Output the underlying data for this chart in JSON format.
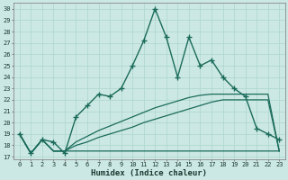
{
  "title": "",
  "xlabel": "Humidex (Indice chaleur)",
  "ylabel": "",
  "bg_color": "#cce8e4",
  "grid_color": "#b0d8d0",
  "line_color": "#1a6b5a",
  "x_ticks": [
    0,
    1,
    2,
    3,
    4,
    5,
    6,
    7,
    8,
    9,
    10,
    11,
    12,
    13,
    14,
    15,
    16,
    17,
    18,
    19,
    20,
    21,
    22,
    23
  ],
  "y_ticks": [
    17,
    18,
    19,
    20,
    21,
    22,
    23,
    24,
    25,
    26,
    27,
    28,
    29,
    30
  ],
  "ylim": [
    16.8,
    30.5
  ],
  "xlim": [
    -0.5,
    23.5
  ],
  "main_y": [
    19.0,
    17.3,
    18.5,
    18.3,
    17.3,
    20.5,
    21.5,
    22.5,
    22.3,
    23.0,
    25.0,
    27.2,
    30.0,
    27.5,
    24.0,
    27.5,
    25.0,
    25.5,
    24.0,
    23.0,
    22.3,
    19.5,
    19.0,
    18.5
  ],
  "line_flat_y": [
    19.0,
    17.3,
    18.5,
    17.5,
    17.5,
    17.5,
    17.5,
    17.5,
    17.5,
    17.5,
    17.5,
    17.5,
    17.5,
    17.5,
    17.5,
    17.5,
    17.5,
    17.5,
    17.5,
    17.5,
    17.5,
    17.5,
    17.5,
    17.5
  ],
  "line_diag1_y": [
    19.0,
    17.3,
    18.5,
    17.5,
    17.5,
    18.0,
    18.3,
    18.7,
    19.0,
    19.3,
    19.6,
    20.0,
    20.3,
    20.6,
    20.9,
    21.2,
    21.5,
    21.8,
    22.0,
    22.0,
    22.0,
    22.0,
    22.0,
    17.5
  ],
  "line_diag2_y": [
    19.0,
    17.3,
    18.5,
    17.5,
    17.5,
    18.3,
    18.8,
    19.3,
    19.7,
    20.1,
    20.5,
    20.9,
    21.3,
    21.6,
    21.9,
    22.2,
    22.4,
    22.5,
    22.5,
    22.5,
    22.5,
    22.5,
    22.5,
    17.5
  ]
}
